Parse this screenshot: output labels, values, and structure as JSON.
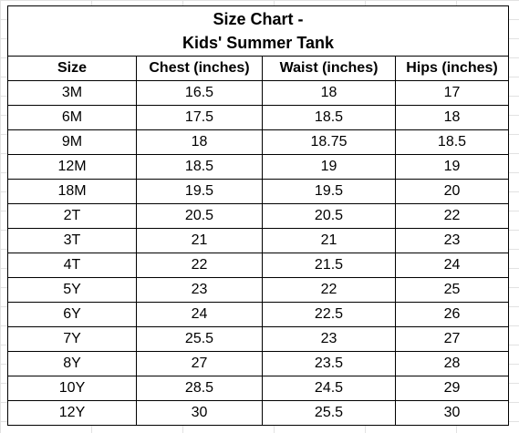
{
  "title_line1": "Size Chart -",
  "title_line2": "Kids' Summer Tank",
  "columns": [
    "Size",
    "Chest (inches)",
    "Waist (inches)",
    "Hips (inches)"
  ],
  "rows": [
    [
      "3M",
      "16.5",
      "18",
      "17"
    ],
    [
      "6M",
      "17.5",
      "18.5",
      "18"
    ],
    [
      "9M",
      "18",
      "18.75",
      "18.5"
    ],
    [
      "12M",
      "18.5",
      "19",
      "19"
    ],
    [
      "18M",
      "19.5",
      "19.5",
      "20"
    ],
    [
      "2T",
      "20.5",
      "20.5",
      "22"
    ],
    [
      "3T",
      "21",
      "21",
      "23"
    ],
    [
      "4T",
      "22",
      "21.5",
      "24"
    ],
    [
      "5Y",
      "23",
      "22",
      "25"
    ],
    [
      "6Y",
      "24",
      "22.5",
      "26"
    ],
    [
      "7Y",
      "25.5",
      "23",
      "27"
    ],
    [
      "8Y",
      "27",
      "23.5",
      "28"
    ],
    [
      "10Y",
      "28.5",
      "24.5",
      "29"
    ],
    [
      "12Y",
      "30",
      "25.5",
      "30"
    ]
  ]
}
